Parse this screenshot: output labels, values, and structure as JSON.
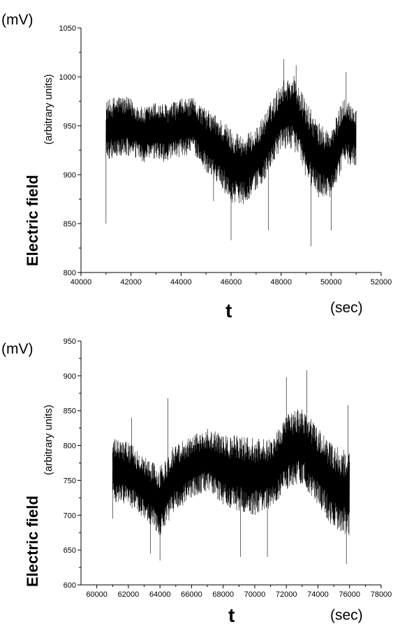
{
  "chart_data": [
    {
      "type": "line",
      "title": "",
      "xlabel": "t",
      "x_unit": "(sec)",
      "ylabel": "Electric field",
      "ylabel_note": "(arbitrary units)",
      "y_unit": "(mV)",
      "xlim": [
        40000,
        52000
      ],
      "ylim": [
        800,
        1050
      ],
      "x_ticks": [
        40000,
        42000,
        44000,
        46000,
        48000,
        50000,
        52000
      ],
      "y_ticks": [
        800,
        850,
        900,
        950,
        1000,
        1050
      ],
      "x_tick_labels": [
        "40000",
        "42000",
        "44000",
        "46000",
        "48000",
        "50000",
        "52000"
      ],
      "y_tick_labels": [
        "800",
        "850",
        "900",
        "950",
        "1000",
        "1050"
      ],
      "grid": false,
      "series": [
        {
          "color": "#000000",
          "x": [
            41000,
            41500,
            42000,
            42500,
            43000,
            43500,
            44000,
            44500,
            45000,
            45500,
            46000,
            46500,
            47000,
            47500,
            48000,
            48500,
            49000,
            49500,
            50000,
            50500,
            51000
          ],
          "y": [
            945,
            950,
            948,
            940,
            945,
            942,
            948,
            950,
            935,
            925,
            910,
            905,
            915,
            935,
            960,
            965,
            935,
            915,
            910,
            945,
            940
          ],
          "amplitude": [
            30,
            32,
            30,
            28,
            30,
            30,
            30,
            28,
            32,
            35,
            38,
            35,
            32,
            35,
            35,
            38,
            40,
            38,
            35,
            35,
            30
          ],
          "spikes": [
            {
              "x": 41000,
              "y": 850
            },
            {
              "x": 41000,
              "y": 930
            },
            {
              "x": 45300,
              "y": 873
            },
            {
              "x": 46000,
              "y": 833
            },
            {
              "x": 47500,
              "y": 843
            },
            {
              "x": 48100,
              "y": 1018
            },
            {
              "x": 48600,
              "y": 1012
            },
            {
              "x": 49200,
              "y": 827
            },
            {
              "x": 50000,
              "y": 843
            },
            {
              "x": 50600,
              "y": 1005
            }
          ]
        }
      ]
    },
    {
      "type": "line",
      "title": "",
      "xlabel": "t",
      "x_unit": "(sec)",
      "ylabel": "Electric field",
      "ylabel_note": "(arbitrary units)",
      "y_unit": "(mV)",
      "xlim": [
        59000,
        78000
      ],
      "ylim": [
        600,
        950
      ],
      "x_ticks": [
        60000,
        62000,
        64000,
        66000,
        68000,
        70000,
        72000,
        74000,
        76000,
        78000
      ],
      "y_ticks": [
        600,
        650,
        700,
        750,
        800,
        850,
        900,
        950
      ],
      "x_tick_labels": [
        "60000",
        "62000",
        "64000",
        "66000",
        "68000",
        "70000",
        "72000",
        "74000",
        "76000",
        "78000"
      ],
      "y_tick_labels": [
        "600",
        "650",
        "700",
        "750",
        "800",
        "850",
        "900",
        "950"
      ],
      "grid": false,
      "series": [
        {
          "color": "#000000",
          "x": [
            61000,
            62000,
            63000,
            64000,
            65000,
            66000,
            67000,
            68000,
            69000,
            70000,
            71000,
            72000,
            73000,
            74000,
            75000,
            76000
          ],
          "y": [
            765,
            760,
            740,
            720,
            755,
            770,
            780,
            765,
            760,
            755,
            760,
            790,
            800,
            770,
            740,
            730
          ],
          "amplitude": [
            45,
            45,
            45,
            50,
            50,
            45,
            45,
            50,
            55,
            55,
            50,
            55,
            55,
            55,
            60,
            60
          ],
          "spikes": [
            {
              "x": 61000,
              "y": 695
            },
            {
              "x": 62200,
              "y": 840
            },
            {
              "x": 63400,
              "y": 645
            },
            {
              "x": 64000,
              "y": 635
            },
            {
              "x": 64500,
              "y": 868
            },
            {
              "x": 69100,
              "y": 640
            },
            {
              "x": 70800,
              "y": 640
            },
            {
              "x": 72000,
              "y": 898
            },
            {
              "x": 73300,
              "y": 908
            },
            {
              "x": 75800,
              "y": 630
            },
            {
              "x": 75900,
              "y": 858
            }
          ]
        }
      ]
    }
  ]
}
